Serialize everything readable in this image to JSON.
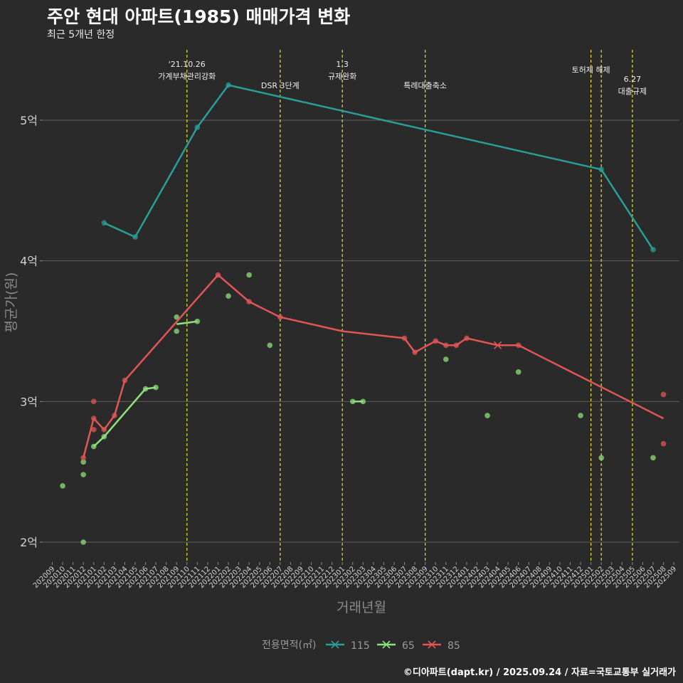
{
  "title": "주안 현대 아파트(1985) 매매가격 변화",
  "subtitle": "최근 5개년 한정",
  "caption": "©디아파트(dapt.kr) / 2025.09.24 / 자료=국토교통부 실거래가",
  "chart_data": {
    "type": "line",
    "xlabel": "거래년월",
    "ylabel": "평균가(원)",
    "ylim": [
      1.9,
      5.5
    ],
    "yticks": [
      {
        "value": 2,
        "label": "2억"
      },
      {
        "value": 3,
        "label": "3억"
      },
      {
        "value": 4,
        "label": "4억"
      },
      {
        "value": 5,
        "label": "5억"
      }
    ],
    "categories": [
      "202009",
      "202010",
      "202011",
      "202012",
      "202101",
      "202102",
      "202103",
      "202104",
      "202105",
      "202106",
      "202107",
      "202108",
      "202109",
      "202110",
      "202111",
      "202112",
      "202201",
      "202202",
      "202203",
      "202204",
      "202205",
      "202206",
      "202207",
      "202208",
      "202209",
      "202210",
      "202211",
      "202212",
      "202301",
      "202302",
      "202303",
      "202304",
      "202305",
      "202306",
      "202307",
      "202308",
      "202309",
      "202310",
      "202311",
      "202312",
      "202401",
      "202402",
      "202403",
      "202404",
      "202405",
      "202406",
      "202407",
      "202408",
      "202409",
      "202410",
      "202411",
      "202412",
      "202501",
      "202502",
      "202503",
      "202504",
      "202505",
      "202506",
      "202507",
      "202508",
      "202509"
    ],
    "series": [
      {
        "name": "115",
        "color": "#2a9d96",
        "line": [
          [
            5,
            4.27
          ],
          [
            8,
            4.17
          ],
          [
            14,
            4.95
          ],
          [
            17,
            5.25
          ],
          [
            53,
            4.65
          ],
          [
            58,
            4.08
          ]
        ],
        "points": [
          [
            5,
            4.27
          ],
          [
            8,
            4.17
          ],
          [
            14,
            4.95
          ],
          [
            17,
            5.25
          ],
          [
            53,
            4.65
          ],
          [
            58,
            4.08
          ]
        ]
      },
      {
        "name": "65",
        "color": "#8ee07a",
        "line": [
          [
            4,
            2.68
          ],
          [
            5,
            2.75
          ],
          [
            9,
            3.09
          ],
          [
            10,
            3.1
          ]
        ],
        "line2": [
          [
            12,
            3.55
          ],
          [
            14,
            3.57
          ]
        ],
        "line3": [
          [
            29,
            3.0
          ],
          [
            30,
            3.0
          ]
        ],
        "points": [
          [
            1,
            2.4
          ],
          [
            3,
            2.57
          ],
          [
            3,
            2.48
          ],
          [
            3,
            2.0
          ],
          [
            4,
            2.68
          ],
          [
            5,
            2.75
          ],
          [
            9,
            3.09
          ],
          [
            10,
            3.1
          ],
          [
            12,
            3.6
          ],
          [
            12,
            3.5
          ],
          [
            14,
            3.57
          ],
          [
            17,
            3.75
          ],
          [
            19,
            3.9
          ],
          [
            21,
            3.4
          ],
          [
            29,
            3.0
          ],
          [
            30,
            3.0
          ],
          [
            38,
            3.3
          ],
          [
            42,
            2.9
          ],
          [
            45,
            3.21
          ],
          [
            51,
            2.9
          ],
          [
            53,
            2.6
          ],
          [
            58,
            2.6
          ]
        ]
      },
      {
        "name": "85",
        "color": "#e05555",
        "line": [
          [
            3,
            2.6
          ],
          [
            4,
            2.88
          ],
          [
            5,
            2.8
          ],
          [
            6,
            2.9
          ],
          [
            7,
            3.15
          ],
          [
            16,
            3.9
          ],
          [
            19,
            3.71
          ],
          [
            22,
            3.6
          ],
          [
            28,
            3.5
          ],
          [
            34,
            3.45
          ],
          [
            35,
            3.35
          ],
          [
            37,
            3.43
          ],
          [
            38,
            3.4
          ],
          [
            39,
            3.4
          ],
          [
            40,
            3.45
          ],
          [
            43,
            3.4
          ],
          [
            45,
            3.4
          ],
          [
            59,
            2.88
          ]
        ],
        "points": [
          [
            3,
            2.6
          ],
          [
            4,
            3.0
          ],
          [
            4,
            2.88
          ],
          [
            4,
            2.8
          ],
          [
            5,
            2.8
          ],
          [
            6,
            2.9
          ],
          [
            7,
            3.15
          ],
          [
            16,
            3.9
          ],
          [
            19,
            3.71
          ],
          [
            22,
            3.6
          ],
          [
            34,
            3.45
          ],
          [
            35,
            3.35
          ],
          [
            37,
            3.43
          ],
          [
            38,
            3.4
          ],
          [
            39,
            3.4
          ],
          [
            40,
            3.45
          ],
          [
            45,
            3.4
          ],
          [
            59,
            3.05
          ],
          [
            59,
            2.7
          ]
        ],
        "crosses": [
          [
            43,
            3.4
          ]
        ]
      }
    ],
    "events": [
      {
        "index": 13,
        "label": "'21.10.26\n가계부채관리강화",
        "level": 0
      },
      {
        "index": 22,
        "label": "DSR 3단계",
        "level": 2
      },
      {
        "index": 28,
        "label": "1.3\n규제완화",
        "level": 0
      },
      {
        "index": 36,
        "label": "특례대출축소",
        "level": 2
      },
      {
        "index": 52,
        "label": "토허제 해제",
        "level": 1
      },
      {
        "index": 53,
        "label": "",
        "level": 1
      },
      {
        "index": 56,
        "label": "6.27\n대출규제",
        "level": 1
      }
    ],
    "legend": {
      "title": "전용면적(㎡)",
      "position": "bottom",
      "entries": [
        {
          "label": "115",
          "color": "#2a9d96"
        },
        {
          "label": "65",
          "color": "#8ee07a"
        },
        {
          "label": "85",
          "color": "#e05555"
        }
      ]
    }
  }
}
